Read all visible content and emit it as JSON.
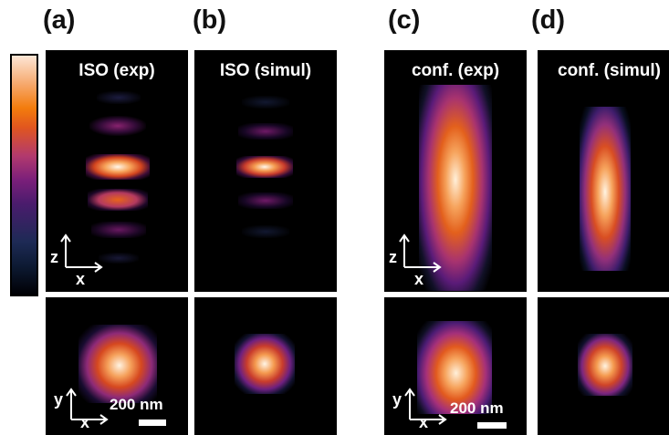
{
  "panel_labels": {
    "a": "(a)",
    "b": "(b)",
    "c": "(c)",
    "d": "(d)"
  },
  "panel_titles": {
    "iso_exp": "ISO (exp)",
    "iso_simul": "ISO (simul)",
    "conf_exp": "conf. (exp)",
    "conf_simul": "conf. (simul)"
  },
  "axes": {
    "z": "z",
    "x": "x",
    "y": "y"
  },
  "scale_bar": {
    "text": "200 nm"
  },
  "colormap": "inferno"
}
